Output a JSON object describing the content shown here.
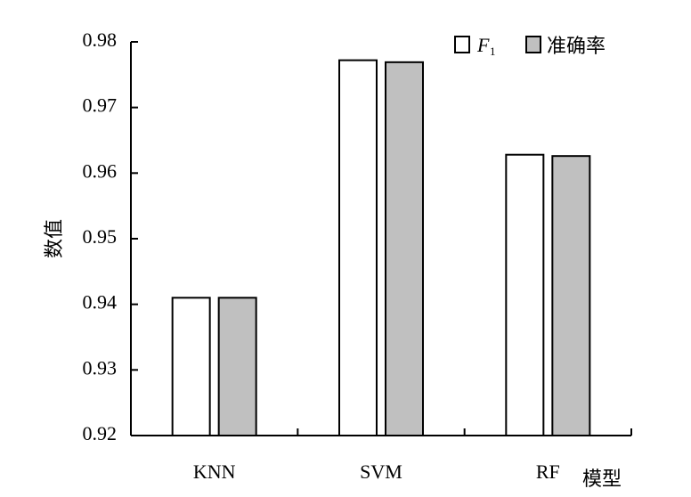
{
  "chart_data": {
    "type": "bar",
    "categories": [
      "KNN",
      "SVM",
      "RF"
    ],
    "series": [
      {
        "name": "F1",
        "values": [
          0.941,
          0.9772,
          0.9628
        ],
        "color": "#ffffff"
      },
      {
        "name": "准确率",
        "values": [
          0.941,
          0.9769,
          0.9626
        ],
        "color": "#c0c0c0"
      }
    ],
    "xlabel": "模型",
    "ylabel": "数值",
    "ylim": [
      0.92,
      0.98
    ],
    "yticks": [
      "0.92",
      "0.93",
      "0.94",
      "0.95",
      "0.96",
      "0.97",
      "0.98"
    ],
    "grid": false,
    "legend_position": "top-right"
  },
  "legend": {
    "f_label": "F",
    "f_subscript": "1",
    "accuracy_label": "准确率"
  }
}
